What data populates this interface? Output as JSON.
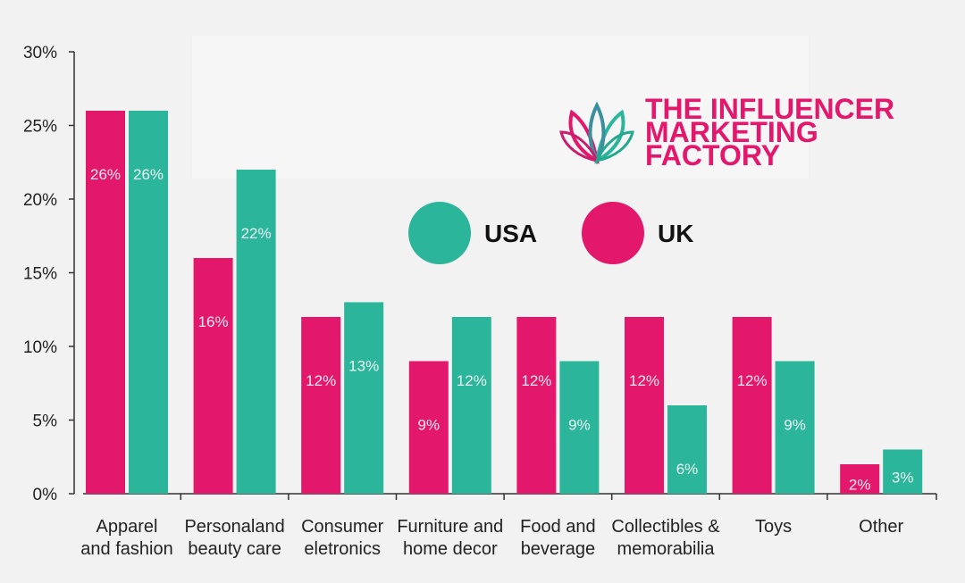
{
  "chart_data": {
    "type": "bar",
    "categories": [
      [
        "Apparel",
        "and fashion"
      ],
      [
        "Personaland",
        "beauty care"
      ],
      [
        "Consumer",
        "eletronics"
      ],
      [
        "Furniture and",
        "home decor"
      ],
      [
        "Food and",
        "beverage"
      ],
      [
        "Collectibles &",
        "memorabilia"
      ],
      [
        "Toys"
      ],
      [
        "Other"
      ]
    ],
    "series": [
      {
        "name": "UK",
        "color": "#e3176b",
        "values": [
          26,
          16,
          12,
          9,
          12,
          12,
          12,
          2
        ],
        "labels": [
          "26%",
          "16%",
          "12%",
          "9%",
          "12%",
          "12%",
          "12%",
          "2%"
        ]
      },
      {
        "name": "USA",
        "color": "#2bb59a",
        "values": [
          26,
          22,
          13,
          12,
          9,
          6,
          9,
          3
        ],
        "labels": [
          "26%",
          "22%",
          "13%",
          "12%",
          "9%",
          "6%",
          "9%",
          "3%"
        ]
      }
    ],
    "ylim": [
      0,
      30
    ],
    "yticks": [
      0,
      5,
      10,
      15,
      20,
      25,
      30
    ],
    "ytick_labels": [
      "0%",
      "5%",
      "10%",
      "15%",
      "20%",
      "25%",
      "30%"
    ],
    "legend": [
      {
        "name": "USA",
        "color": "#2bb59a"
      },
      {
        "name": "UK",
        "color": "#e3176b"
      }
    ],
    "legend_position": "top-right",
    "grid": false
  },
  "brand": {
    "lines": [
      "THE INFLUENCER",
      "MARKETING",
      "FACTORY"
    ],
    "color": "#e3176b",
    "icon": "lotus-logo-icon"
  }
}
